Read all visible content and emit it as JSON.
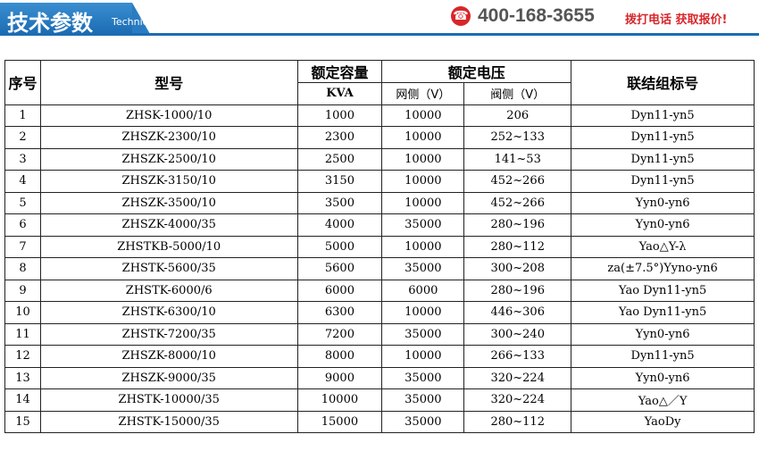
{
  "header": {
    "title": "技术参数",
    "subtitle": "Technical parameter",
    "phone": "400-168-3655",
    "cta": "拨打电话 获取报价!"
  },
  "table": {
    "headers": {
      "no": "序号",
      "model": "型号",
      "capacity": "额定容量",
      "capacity_unit": "KVA",
      "voltage": "额定电压",
      "grid_side": "网侧（V）",
      "valve_side": "阀侧（V）",
      "connection": "联结组标号"
    },
    "rows": [
      [
        "1",
        "ZHSK-1000/10",
        "1000",
        "10000",
        "206",
        "Dyn11-yn5"
      ],
      [
        "2",
        "ZHSZK-2300/10",
        "2300",
        "10000",
        "252~133",
        "Dyn11-yn5"
      ],
      [
        "3",
        "ZHSZK-2500/10",
        "2500",
        "10000",
        "141~53",
        "Dyn11-yn5"
      ],
      [
        "4",
        "ZHSZK-3150/10",
        "3150",
        "10000",
        "452~266",
        "Dyn11-yn5"
      ],
      [
        "5",
        "ZHSZK-3500/10",
        "3500",
        "10000",
        "452~266",
        "Yyn0-yn6"
      ],
      [
        "6",
        "ZHSZK-4000/35",
        "4000",
        "35000",
        "280~196",
        "Yyn0-yn6"
      ],
      [
        "7",
        "ZHSTKB-5000/10",
        "5000",
        "10000",
        "280~112",
        "Yao△Y-λ"
      ],
      [
        "8",
        "ZHSTK-5600/35",
        "5600",
        "35000",
        "300~208",
        "za(±7.5°)Yyno-yn6"
      ],
      [
        "9",
        "ZHSTK-6000/6",
        "6000",
        "6000",
        "280~196",
        "Yao Dyn11-yn5"
      ],
      [
        "10",
        "ZHSTK-6300/10",
        "6300",
        "10000",
        "446~306",
        "Yao Dyn11-yn5"
      ],
      [
        "11",
        "ZHSTK-7200/35",
        "7200",
        "35000",
        "300~240",
        "Yyn0-yn6"
      ],
      [
        "12",
        "ZHSZK-8000/10",
        "8000",
        "10000",
        "266~133",
        "Dyn11-yn5"
      ],
      [
        "13",
        "ZHSZK-9000/35",
        "9000",
        "35000",
        "320~224",
        "Yyn0-yn6"
      ],
      [
        "14",
        "ZHSTK-10000/35",
        "10000",
        "35000",
        "320~224",
        "Yao△／Y"
      ],
      [
        "15",
        "ZHSTK-15000/35",
        "15000",
        "35000",
        "280~112",
        "YaoDy"
      ]
    ]
  }
}
